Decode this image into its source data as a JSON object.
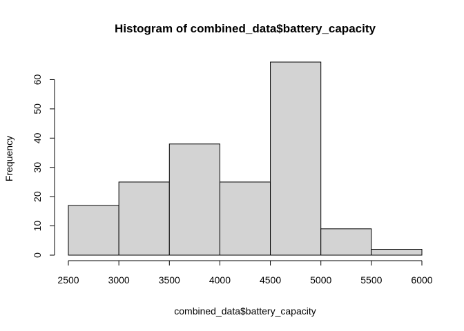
{
  "chart_data": {
    "type": "bar",
    "title": "Histogram of combined_data$battery_capacity",
    "xlabel": "combined_data$battery_capacity",
    "ylabel": "Frequency",
    "bins": [
      {
        "start": 2500,
        "end": 3000,
        "count": 17
      },
      {
        "start": 3000,
        "end": 3500,
        "count": 25
      },
      {
        "start": 3500,
        "end": 4000,
        "count": 38
      },
      {
        "start": 4000,
        "end": 4500,
        "count": 25
      },
      {
        "start": 4500,
        "end": 5000,
        "count": 66
      },
      {
        "start": 5000,
        "end": 5500,
        "count": 9
      },
      {
        "start": 5500,
        "end": 6000,
        "count": 2
      }
    ],
    "xlim": [
      2500,
      6000
    ],
    "ylim": [
      0,
      66
    ],
    "x_ticks": [
      2500,
      3000,
      3500,
      4000,
      4500,
      5000,
      5500,
      6000
    ],
    "y_ticks": [
      0,
      10,
      20,
      30,
      40,
      50,
      60
    ],
    "bar_fill": "#d3d3d3",
    "grid": false,
    "legend": "none"
  }
}
